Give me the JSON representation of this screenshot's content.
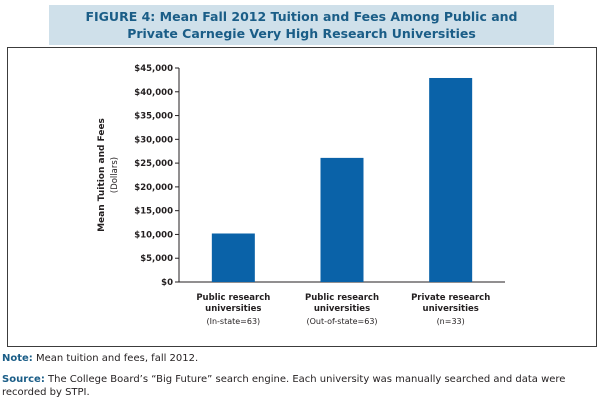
{
  "header": {
    "title_bold": "FIGURE 4:",
    "title_rest": " Mean Fall 2012 Tuition and Fees Among Public and Private Carnegie Very High Research Universities"
  },
  "notes": {
    "note_label": "Note:",
    "note_text": " Mean tuition and fees, fall 2012.",
    "source_label": "Source:",
    "source_text": " The College Board’s “Big Future” search engine. Each university was manually searched and data were recorded by STPI."
  },
  "colors": {
    "bar": "#0a62a8",
    "title_bg": "#cfe0ea",
    "title_text": "#1a5d87"
  },
  "chart_data": {
    "type": "bar",
    "ylabel": "Mean Tuition and Fees",
    "ylabel_sub": "(Dollars)",
    "ylim": [
      0,
      45000
    ],
    "yticks": [
      0,
      5000,
      10000,
      15000,
      20000,
      25000,
      30000,
      35000,
      40000,
      45000
    ],
    "ytick_labels": [
      "$0",
      "$5,000",
      "$10,000",
      "$15,000",
      "$20,000",
      "$25,000",
      "$30,000",
      "$35,000",
      "$40,000",
      "$45,000"
    ],
    "grid": false,
    "categories": [
      {
        "line1": "Public research",
        "line2": "universities",
        "line3": "(In-state=63)"
      },
      {
        "line1": "Public research",
        "line2": "universities",
        "line3": "(Out-of-state=63)"
      },
      {
        "line1": "Private research",
        "line2": "universities",
        "line3": "(n=33)"
      }
    ],
    "values": [
      10200,
      26100,
      42900
    ]
  }
}
